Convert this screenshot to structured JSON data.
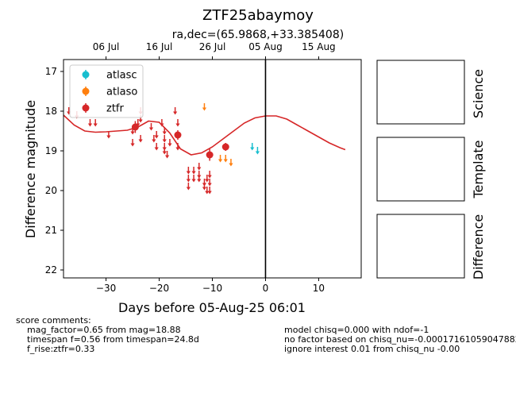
{
  "chart_data": {
    "type": "scatter",
    "title": "ZTF25abaymoy",
    "subtitle": "ra,dec=(65.9868,+33.385408)",
    "xlabel": "Days before 05-Aug-25 06:01",
    "ylabel": "Difference magnitude",
    "xlim": [
      -38,
      18
    ],
    "ylim": [
      22.2,
      16.7
    ],
    "y_inverted": true,
    "x_ticks": [
      -30,
      -20,
      -10,
      0,
      10
    ],
    "y_ticks": [
      17,
      18,
      19,
      20,
      21,
      22
    ],
    "top_axis_ticks": [
      {
        "label": "06 Jul",
        "x": -30
      },
      {
        "label": "16 Jul",
        "x": -20
      },
      {
        "label": "26 Jul",
        "x": -10
      },
      {
        "label": "05 Aug",
        "x": 0
      },
      {
        "label": "15 Aug",
        "x": 10
      }
    ],
    "vline_x": 0,
    "legend_position": "upper-left",
    "series": [
      {
        "name": "atlasc",
        "color": "#17becf",
        "detections": [],
        "upper_limits": [
          [
            -2.5,
            18.9
          ],
          [
            -1.5,
            19.0
          ]
        ]
      },
      {
        "name": "atlaso",
        "color": "#ff7f0e",
        "detections": [],
        "upper_limits": [
          [
            -11.5,
            17.9
          ],
          [
            -8.5,
            19.2
          ],
          [
            -7.5,
            19.2
          ],
          [
            -6.5,
            19.3
          ]
        ]
      },
      {
        "name": "ztfr",
        "color": "#d62728",
        "detections": [
          {
            "x": -24.5,
            "y": 18.4,
            "err": 0.15
          },
          {
            "x": -16.5,
            "y": 18.6,
            "err": 0.12
          },
          {
            "x": -10.5,
            "y": 19.1,
            "err": 0.15
          },
          {
            "x": -7.5,
            "y": 18.9,
            "err": 0.1
          }
        ],
        "upper_limits": [
          [
            -37,
            18.0
          ],
          [
            -35.5,
            18.1
          ],
          [
            -33,
            18.3
          ],
          [
            -32,
            18.3
          ],
          [
            -29.5,
            18.6
          ],
          [
            -25,
            18.5
          ],
          [
            -25,
            18.8
          ],
          [
            -24,
            18.3
          ],
          [
            -23.5,
            18.0
          ],
          [
            -23.5,
            18.2
          ],
          [
            -23.5,
            18.7
          ],
          [
            -21.5,
            18.4
          ],
          [
            -21,
            18.7
          ],
          [
            -20.5,
            18.6
          ],
          [
            -20.5,
            18.9
          ],
          [
            -19.5,
            18.3
          ],
          [
            -19,
            18.5
          ],
          [
            -19,
            18.7
          ],
          [
            -19,
            18.9
          ],
          [
            -19,
            19.0
          ],
          [
            -18.5,
            19.1
          ],
          [
            -18,
            18.8
          ],
          [
            -17,
            18.0
          ],
          [
            -16.5,
            18.3
          ],
          [
            -16.5,
            18.9
          ],
          [
            -14.5,
            19.5
          ],
          [
            -14.5,
            19.7
          ],
          [
            -14.5,
            19.9
          ],
          [
            -13.5,
            19.5
          ],
          [
            -13.5,
            19.7
          ],
          [
            -12.5,
            19.4
          ],
          [
            -12.5,
            19.6
          ],
          [
            -12.5,
            19.7
          ],
          [
            -11.5,
            19.8
          ],
          [
            -11.5,
            19.9
          ],
          [
            -11,
            19.7
          ],
          [
            -11,
            20.0
          ],
          [
            -10.5,
            19.6
          ],
          [
            -10.5,
            19.8
          ],
          [
            -10.5,
            20.0
          ]
        ]
      }
    ],
    "model_curve": {
      "color": "#d62728",
      "x": [
        -38,
        -36,
        -34,
        -32,
        -30,
        -28,
        -26,
        -24,
        -22,
        -20,
        -18,
        -16,
        -14,
        -12,
        -10,
        -8,
        -6,
        -4,
        -2,
        0,
        2,
        4,
        6,
        8,
        10,
        12,
        14,
        15
      ],
      "y": [
        18.1,
        18.35,
        18.5,
        18.53,
        18.52,
        18.5,
        18.48,
        18.4,
        18.25,
        18.28,
        18.55,
        18.95,
        19.1,
        19.05,
        18.9,
        18.7,
        18.5,
        18.3,
        18.17,
        18.12,
        18.12,
        18.2,
        18.35,
        18.5,
        18.65,
        18.8,
        18.92,
        18.97
      ]
    }
  },
  "panels": {
    "science": "Science",
    "template": "Template",
    "difference": "Difference"
  },
  "comments": {
    "heading": "score comments:",
    "left": [
      "mag_factor=0.65 from mag=18.88",
      "timespan f=0.56 from timespan=24.8d",
      "f_rise:ztfr=0.33"
    ],
    "right": [
      "model chisq=0.000 with ndof=-1",
      "no factor based on chisq_nu=-0.00017161059047882",
      "ignore interest 0.01 from chisq_nu -0.00"
    ]
  }
}
